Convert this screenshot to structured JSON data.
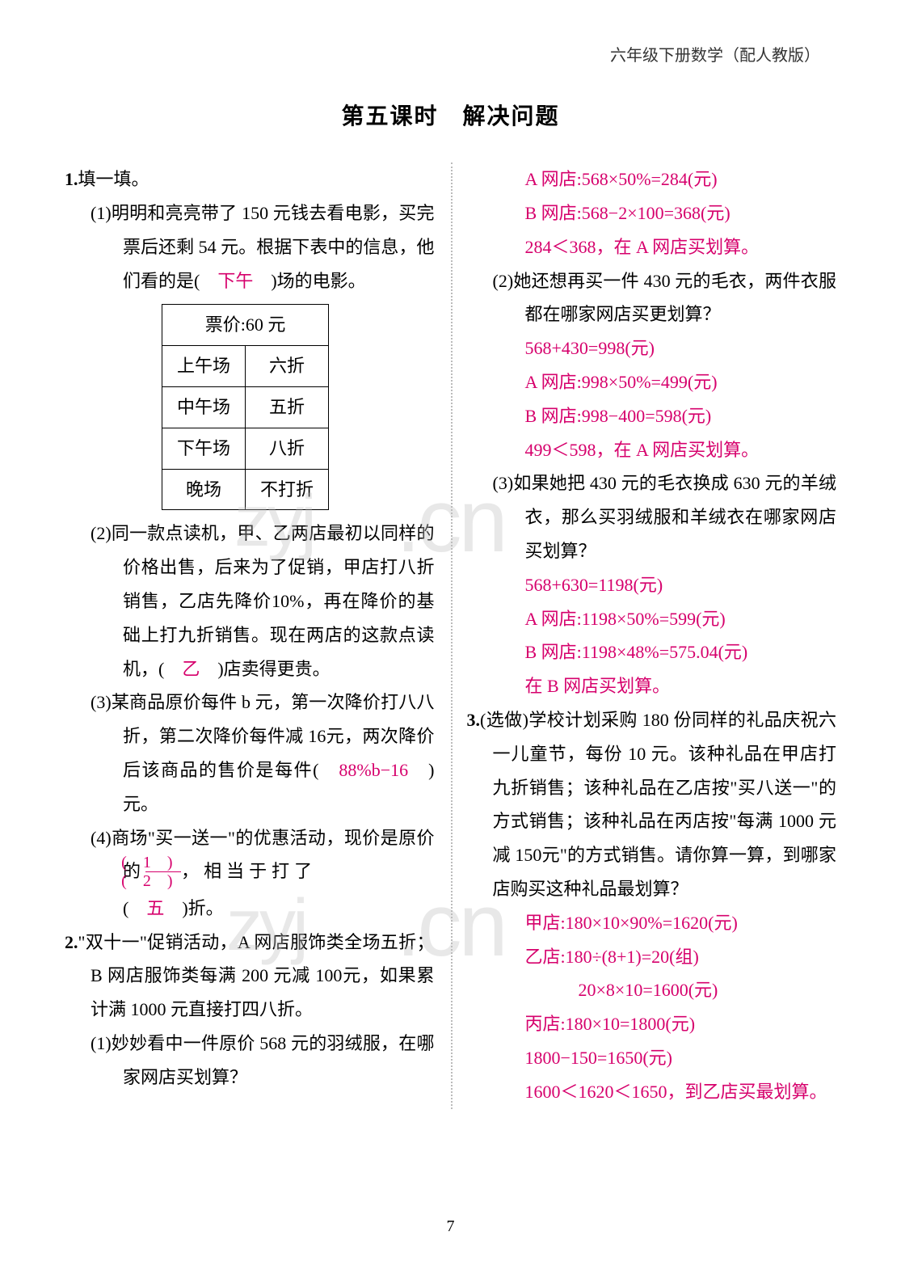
{
  "header": "六年级下册数学（配人教版）",
  "title": "第五课时　解决问题",
  "page_number": "7",
  "colors": {
    "answer": "#d6006c",
    "text": "#000000",
    "watermark": "#c0c0c0",
    "divider": "#bbbbbb",
    "background": "#ffffff"
  },
  "left": {
    "q1_label": "1.",
    "q1_text": "填一填。",
    "q1_1_label": "(1)",
    "q1_1_text_a": "明明和亮亮带了 150 元钱去看电影，买完票后还剩 54 元。根据下表中的信息，他们看的是(　",
    "q1_1_ans": "下午",
    "q1_1_text_b": "　)场的电影。",
    "table": {
      "header": "票价:60 元",
      "rows": [
        [
          "上午场",
          "六折"
        ],
        [
          "中午场",
          "五折"
        ],
        [
          "下午场",
          "八折"
        ],
        [
          "晚场",
          "不打折"
        ]
      ]
    },
    "q1_2_label": "(2)",
    "q1_2_text_a": "同一款点读机，甲、乙两店最初以同样的价格出售，后来为了促销，甲店打八折销售，乙店先降价10%，再在降价的基础上打九折销售。现在两店的这款点读机，(　",
    "q1_2_ans": "乙",
    "q1_2_text_b": "　)店卖得更贵。",
    "q1_3_label": "(3)",
    "q1_3_text_a": "某商品原价每件 b 元，第一次降价打八八折，第二次降价每件减 16元，两次降价后该商品的售价是每件(　",
    "q1_3_ans": "88%b−16",
    "q1_3_text_b": "　)元。",
    "q1_4_label": "(4)",
    "q1_4_text_a": "商场\"买一送一\"的优惠活动，现价是原价的",
    "q1_4_frac_num": "(　1　)",
    "q1_4_frac_den": "(　2　)",
    "q1_4_text_b": "，相当于打了",
    "q1_4_text_c": "(　",
    "q1_4_ans2": "五",
    "q1_4_text_d": "　)折。",
    "q2_label": "2.",
    "q2_text": "\"双十一\"促销活动，A 网店服饰类全场五折；B 网店服饰类每满 200 元减 100元，如果累计满 1000 元直接打四八折。",
    "q2_1_label": "(1)",
    "q2_1_text": "妙妙看中一件原价 568 元的羽绒服，在哪家网店买划算？"
  },
  "right": {
    "q2_1_ans1": "A 网店:568×50%=284(元)",
    "q2_1_ans2": "B 网店:568−2×100=368(元)",
    "q2_1_ans3": "284＜368，在 A 网店买划算。",
    "q2_2_label": "(2)",
    "q2_2_text": "她还想再买一件 430 元的毛衣，两件衣服都在哪家网店买更划算？",
    "q2_2_ans1": "568+430=998(元)",
    "q2_2_ans2": "A 网店:998×50%=499(元)",
    "q2_2_ans3": "B 网店:998−400=598(元)",
    "q2_2_ans4": "499＜598，在 A 网店买划算。",
    "q2_3_label": "(3)",
    "q2_3_text": "如果她把 430 元的毛衣换成 630 元的羊绒衣，那么买羽绒服和羊绒衣在哪家网店买划算？",
    "q2_3_ans1": "568+630=1198(元)",
    "q2_3_ans2": "A 网店:1198×50%=599(元)",
    "q2_3_ans3": "B 网店:1198×48%=575.04(元)",
    "q2_3_ans4": "在 B 网店买划算。",
    "q3_label": "3.",
    "q3_text": "(选做)学校计划采购 180 份同样的礼品庆祝六一儿童节，每份 10 元。该种礼品在甲店打九折销售；该种礼品在乙店按\"买八送一\"的方式销售；该种礼品在丙店按\"每满 1000 元减 150元\"的方式销售。请你算一算，到哪家店购买这种礼品最划算？",
    "q3_ans1": "甲店:180×10×90%=1620(元)",
    "q3_ans2": "乙店:180÷(8+1)=20(组)",
    "q3_ans3": "　　　20×8×10=1600(元)",
    "q3_ans4": "丙店:180×10=1800(元)",
    "q3_ans5": "1800−150=1650(元)",
    "q3_ans6": "1600＜1620＜1650，到乙店买最划算。"
  },
  "watermark_text": "zyj.cn"
}
